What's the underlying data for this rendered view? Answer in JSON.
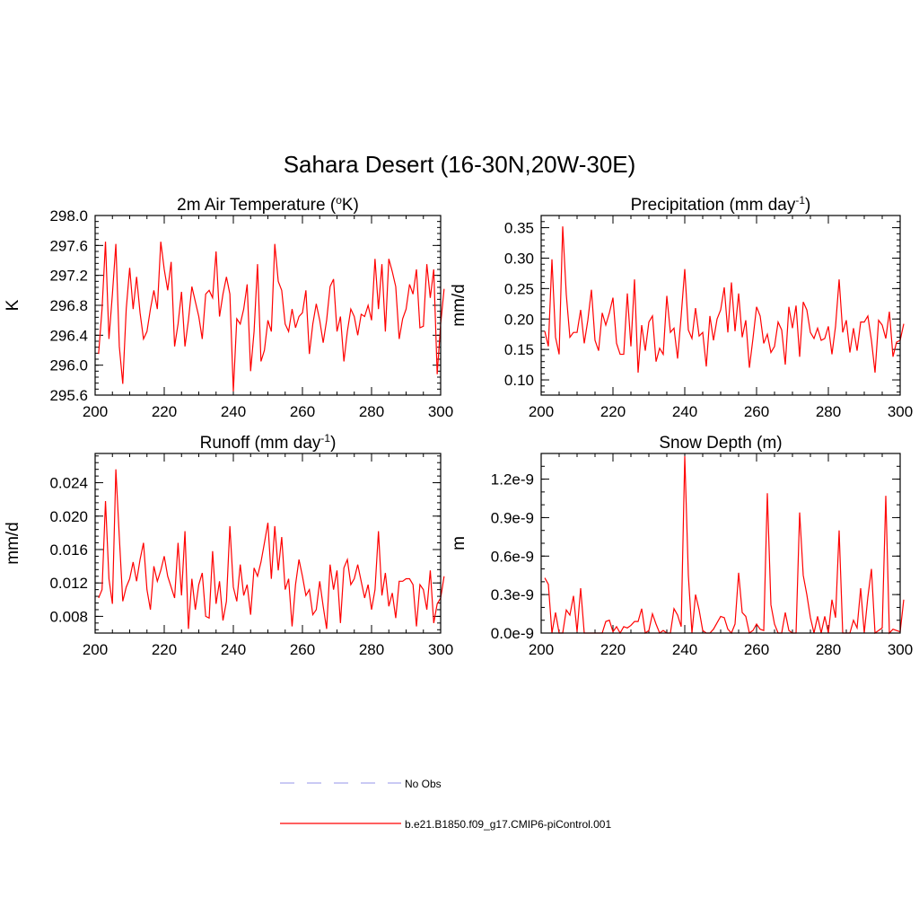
{
  "title": "Sahara Desert (16-30N,20W-30E)",
  "legend": {
    "placement": "bottom-center",
    "entries": [
      {
        "label": "No Obs",
        "style": "dashed",
        "color": "#aaaaee"
      },
      {
        "label": "b.e21.B1850.f09_g17.CMIP6-piControl.001",
        "style": "solid",
        "color": "#ff0000"
      }
    ]
  },
  "chart_data": [
    {
      "type": "line",
      "title": "2m Air Temperature (",
      "title_sup": "o",
      "title_after": "K)",
      "ylabel": "K",
      "xlim": [
        200,
        300
      ],
      "ylim": [
        295.6,
        298.0
      ],
      "xticks": [
        "200",
        "220",
        "240",
        "260",
        "280",
        "300"
      ],
      "xtick_values": [
        200,
        220,
        240,
        260,
        280,
        300
      ],
      "yticks": [
        "295.6",
        "296.0",
        "296.4",
        "296.8",
        "297.2",
        "297.6",
        "298.0"
      ],
      "ytick_values": [
        295.6,
        296.0,
        296.4,
        296.8,
        297.2,
        297.6,
        298.0
      ],
      "minor_y": 0.08,
      "line_color": "#ff0000",
      "x_start": 201,
      "values": [
        296.15,
        296.75,
        297.65,
        296.35,
        296.95,
        297.62,
        296.25,
        295.75,
        296.75,
        297.3,
        296.75,
        297.18,
        296.7,
        296.35,
        296.45,
        296.75,
        297.0,
        296.75,
        297.65,
        297.28,
        297.0,
        297.38,
        296.25,
        296.55,
        296.98,
        296.25,
        296.6,
        297.05,
        296.85,
        296.65,
        296.35,
        296.95,
        297.0,
        296.9,
        297.52,
        296.65,
        296.95,
        297.18,
        296.95,
        295.65,
        296.62,
        296.55,
        296.75,
        297.08,
        295.92,
        296.45,
        297.35,
        296.05,
        296.2,
        296.6,
        296.45,
        297.62,
        297.12,
        297.0,
        296.55,
        296.45,
        296.75,
        296.5,
        296.65,
        296.7,
        297.0,
        296.15,
        296.55,
        296.82,
        296.6,
        296.3,
        296.6,
        297.05,
        297.15,
        296.45,
        296.65,
        296.05,
        296.45,
        296.75,
        296.65,
        296.4,
        296.68,
        296.65,
        296.8,
        296.6,
        297.42,
        296.75,
        297.35,
        296.45,
        297.42,
        297.25,
        297.05,
        296.35,
        296.62,
        296.75,
        297.08,
        296.95,
        297.28,
        296.5,
        296.52,
        297.35,
        296.9,
        297.28,
        295.88,
        296.55,
        297.02
      ]
    },
    {
      "type": "line",
      "title": "Precipitation (mm day",
      "title_sup": "-1",
      "title_after": ")",
      "ylabel": "mm/d",
      "xlim": [
        200,
        300
      ],
      "ylim": [
        0.075,
        0.37
      ],
      "xticks": [
        "200",
        "220",
        "240",
        "260",
        "280",
        "300"
      ],
      "xtick_values": [
        200,
        220,
        240,
        260,
        280,
        300
      ],
      "yticks": [
        "0.10",
        "0.15",
        "0.20",
        "0.25",
        "0.30",
        "0.35"
      ],
      "ytick_values": [
        0.1,
        0.15,
        0.2,
        0.25,
        0.3,
        0.35
      ],
      "minor_y": 0.01,
      "line_color": "#ff0000",
      "x_start": 201,
      "values": [
        0.18,
        0.155,
        0.298,
        0.17,
        0.142,
        0.352,
        0.24,
        0.17,
        0.178,
        0.178,
        0.215,
        0.16,
        0.198,
        0.248,
        0.165,
        0.148,
        0.21,
        0.19,
        0.21,
        0.235,
        0.16,
        0.142,
        0.142,
        0.242,
        0.155,
        0.265,
        0.112,
        0.19,
        0.148,
        0.195,
        0.205,
        0.13,
        0.152,
        0.142,
        0.238,
        0.178,
        0.185,
        0.135,
        0.205,
        0.282,
        0.182,
        0.168,
        0.218,
        0.172,
        0.178,
        0.122,
        0.205,
        0.165,
        0.2,
        0.215,
        0.252,
        0.178,
        0.26,
        0.18,
        0.242,
        0.17,
        0.198,
        0.12,
        0.168,
        0.22,
        0.205,
        0.16,
        0.175,
        0.145,
        0.155,
        0.195,
        0.182,
        0.125,
        0.22,
        0.185,
        0.222,
        0.138,
        0.228,
        0.215,
        0.178,
        0.168,
        0.185,
        0.165,
        0.168,
        0.188,
        0.142,
        0.188,
        0.265,
        0.178,
        0.198,
        0.145,
        0.185,
        0.148,
        0.195,
        0.195,
        0.205,
        0.165,
        0.112,
        0.198,
        0.19,
        0.168,
        0.212,
        0.138,
        0.162,
        0.165,
        0.192
      ]
    },
    {
      "type": "line",
      "title": "Runoff (mm day",
      "title_sup": "-1",
      "title_after": ")",
      "ylabel": "mm/d",
      "xlim": [
        200,
        300
      ],
      "ylim": [
        0.006,
        0.0275
      ],
      "xticks": [
        "200",
        "220",
        "240",
        "260",
        "280",
        "300"
      ],
      "xtick_values": [
        200,
        220,
        240,
        260,
        280,
        300
      ],
      "yticks": [
        "0.008",
        "0.012",
        "0.016",
        "0.020",
        "0.024"
      ],
      "ytick_values": [
        0.008,
        0.012,
        0.016,
        0.02,
        0.024
      ],
      "minor_y": 0.0008,
      "line_color": "#ff0000",
      "x_start": 201,
      "values": [
        0.0102,
        0.0112,
        0.0218,
        0.0125,
        0.0095,
        0.0256,
        0.0175,
        0.0098,
        0.0115,
        0.0125,
        0.0145,
        0.0122,
        0.0148,
        0.0168,
        0.0112,
        0.0088,
        0.014,
        0.0122,
        0.0135,
        0.0152,
        0.0128,
        0.0115,
        0.0102,
        0.0168,
        0.0105,
        0.0182,
        0.0065,
        0.0125,
        0.0088,
        0.0118,
        0.0132,
        0.008,
        0.0078,
        0.0158,
        0.0095,
        0.0122,
        0.0075,
        0.0098,
        0.0188,
        0.0115,
        0.0098,
        0.0142,
        0.0105,
        0.0118,
        0.0082,
        0.0138,
        0.0128,
        0.0145,
        0.0168,
        0.0192,
        0.0125,
        0.0188,
        0.0135,
        0.0175,
        0.0112,
        0.0125,
        0.0068,
        0.0118,
        0.0148,
        0.0128,
        0.0105,
        0.0112,
        0.0082,
        0.0088,
        0.0122,
        0.0092,
        0.0065,
        0.0142,
        0.0112,
        0.0135,
        0.0072,
        0.0138,
        0.0148,
        0.0118,
        0.0125,
        0.0142,
        0.0122,
        0.0102,
        0.0118,
        0.0088,
        0.0112,
        0.0182,
        0.0105,
        0.0132,
        0.0092,
        0.0108,
        0.0078,
        0.0122,
        0.0122,
        0.0125,
        0.0125,
        0.0118,
        0.0068,
        0.0118,
        0.0112,
        0.0088,
        0.0135,
        0.0072,
        0.0095,
        0.0102,
        0.0128
      ]
    },
    {
      "type": "line",
      "title": "Snow Depth (m)",
      "title_sup": "",
      "title_after": "",
      "ylabel": "m",
      "xlim": [
        200,
        300
      ],
      "ylim": [
        0,
        1.4e-09
      ],
      "xticks": [
        "200",
        "220",
        "240",
        "260",
        "280",
        "300"
      ],
      "xtick_values": [
        200,
        220,
        240,
        260,
        280,
        300
      ],
      "yticks": [
        "0.0e-9",
        "0.3e-9",
        "0.6e-9",
        "0.9e-9",
        "1.2e-9"
      ],
      "ytick_values": [
        0,
        3e-10,
        6e-10,
        9e-10,
        1.2e-09
      ],
      "minor_y": 1e-10,
      "line_color": "#ff0000",
      "x_start": 201,
      "values": [
        4.3e-10,
        3.8e-10,
        0.0,
        1.6e-10,
        0.0,
        0.0,
        1.8e-10,
        1.4e-10,
        2.9e-10,
        1e-11,
        3.5e-10,
        0.0,
        0.0,
        0.0,
        0.0,
        0.0,
        0.0,
        9e-11,
        1e-10,
        1e-11,
        5e-11,
        0.0,
        5e-11,
        4e-11,
        6e-11,
        9e-11,
        9e-11,
        1.9e-10,
        0.0,
        2e-11,
        1.5e-10,
        7e-11,
        0.0,
        2e-11,
        0.0,
        0.0,
        1.9e-10,
        1.4e-10,
        5e-11,
        1.38e-09,
        4.5e-10,
        0.0,
        3e-10,
        1.8e-10,
        2e-11,
        0.0,
        0.0,
        3e-11,
        8e-11,
        1.3e-10,
        1.2e-10,
        3e-11,
        0.0,
        7e-11,
        4.7e-10,
        1.6e-10,
        1.3e-10,
        0.0,
        2e-11,
        7e-11,
        3e-11,
        2e-11,
        1.09e-09,
        2.2e-10,
        7e-11,
        0.0,
        0.0,
        1.6e-10,
        2e-11,
        0.0,
        0.0,
        9.4e-10,
        4.5e-10,
        3e-10,
        1.2e-10,
        0.0,
        1.3e-10,
        0.0,
        1.3e-10,
        0.0,
        2.6e-10,
        1.2e-10,
        8e-10,
        0.0,
        0.0,
        0.0,
        1e-10,
        4e-11,
        3.5e-10,
        0.0,
        2.8e-10,
        5e-10,
        0.0,
        2e-11,
        4e-11,
        1.07e-09,
        0.0,
        3e-11,
        2e-11,
        1e-11,
        2.6e-10
      ]
    }
  ]
}
